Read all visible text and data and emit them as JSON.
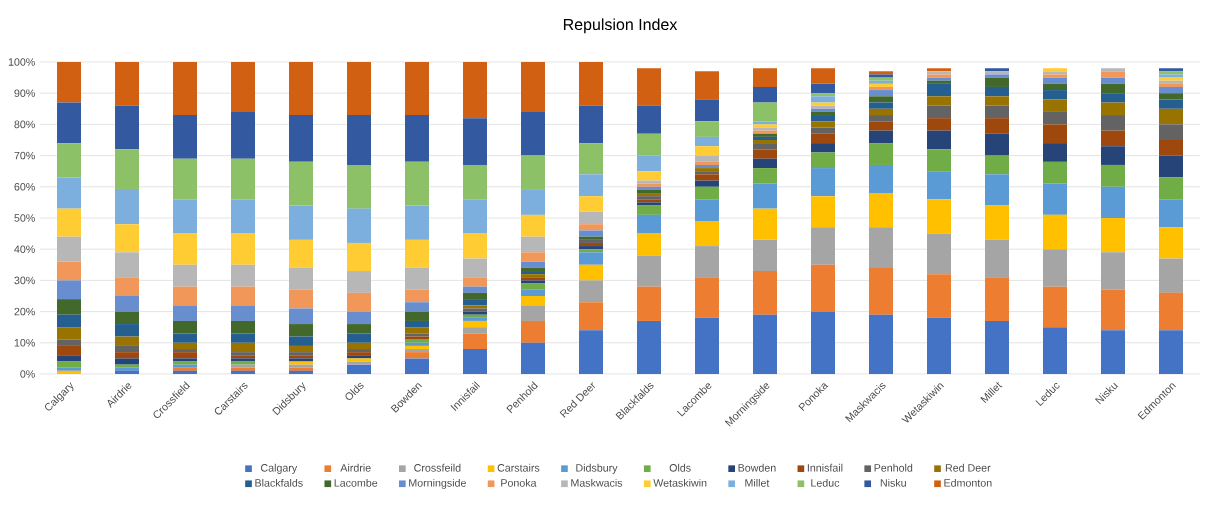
{
  "chart_data": {
    "type": "bar",
    "title": "Repulsion Index",
    "stacked": true,
    "grid": "y",
    "legend": "bottom",
    "categories": [
      "Calgary",
      "Airdrie",
      "Crossfield",
      "Carstairs",
      "Didsbury",
      "Olds",
      "Bowden",
      "Innisfail",
      "Penhold",
      "Red Deer",
      "Blackfalds",
      "Lacombe",
      "Morningside",
      "Ponoka",
      "Maskwacis",
      "Wetaskiwin",
      "Millet",
      "Leduc",
      "Nisku",
      "Edmonton"
    ],
    "ylim": [
      0,
      100
    ],
    "yticks": [
      {
        "value": 0,
        "label": "0%"
      },
      {
        "value": 10,
        "label": "10%"
      },
      {
        "value": 20,
        "label": "20%"
      },
      {
        "value": 30,
        "label": "30%"
      },
      {
        "value": 40,
        "label": "40%"
      },
      {
        "value": 50,
        "label": "50%"
      },
      {
        "value": 60,
        "label": "60%"
      },
      {
        "value": 70,
        "label": "70%"
      },
      {
        "value": 80,
        "label": "80%"
      },
      {
        "value": 90,
        "label": "90%"
      },
      {
        "value": 100,
        "label": "100%"
      }
    ],
    "series": [
      {
        "name": "Calgary",
        "color": "#4472c4",
        "values": [
          0,
          1,
          1,
          1,
          1,
          3,
          5,
          8,
          10,
          14,
          17,
          18,
          19,
          20,
          19,
          18,
          17,
          15,
          14,
          14
        ]
      },
      {
        "name": "Airdrie",
        "color": "#ed7d31",
        "values": [
          0,
          0,
          1,
          1,
          1,
          0,
          2,
          5,
          7,
          9,
          11,
          13,
          14,
          15,
          15,
          14,
          14,
          13,
          13,
          12
        ]
      },
      {
        "name": "Crossfeild",
        "color": "#a5a5a5",
        "values": [
          0,
          0,
          0,
          1,
          1,
          1,
          1,
          2,
          5,
          7,
          10,
          10,
          10,
          12,
          13,
          13,
          12,
          12,
          12,
          11
        ]
      },
      {
        "name": "Carstairs",
        "color": "#ffc000",
        "values": [
          1,
          0,
          0,
          0,
          1,
          1,
          1,
          2,
          3,
          5,
          7,
          8,
          10,
          10,
          11,
          11,
          11,
          11,
          11,
          10
        ]
      },
      {
        "name": "Didsbury",
        "color": "#5b9bd5",
        "values": [
          1,
          1,
          1,
          0,
          0,
          0,
          1,
          1,
          2,
          4,
          6,
          7,
          8,
          9,
          9,
          9,
          10,
          10,
          10,
          9
        ]
      },
      {
        "name": "Olds",
        "color": "#70ad47",
        "values": [
          2,
          1,
          1,
          1,
          0,
          0,
          1,
          1,
          2,
          1,
          3,
          4,
          5,
          5,
          7,
          7,
          6,
          7,
          7,
          7
        ]
      },
      {
        "name": "Bowden",
        "color": "#264478",
        "values": [
          2,
          2,
          1,
          1,
          1,
          1,
          0,
          1,
          1,
          1,
          1,
          2,
          3,
          3,
          4,
          6,
          7,
          6,
          6,
          7
        ]
      },
      {
        "name": "Innisfail",
        "color": "#9e480e",
        "values": [
          3,
          2,
          2,
          1,
          1,
          1,
          1,
          0,
          1,
          1,
          1,
          2,
          3,
          3,
          3,
          4,
          5,
          6,
          5,
          5
        ]
      },
      {
        "name": "Penhold",
        "color": "#636363",
        "values": [
          2,
          2,
          1,
          1,
          1,
          1,
          1,
          1,
          0,
          1,
          1,
          1,
          2,
          2,
          2,
          4,
          4,
          4,
          5,
          5
        ]
      },
      {
        "name": "Red Deer",
        "color": "#997300",
        "values": [
          4,
          3,
          2,
          3,
          2,
          2,
          2,
          1,
          1,
          0,
          1,
          1,
          1,
          2,
          2,
          3,
          3,
          4,
          4,
          5
        ]
      },
      {
        "name": "Blackfalds",
        "color": "#255e91",
        "values": [
          4,
          4,
          3,
          3,
          3,
          3,
          2,
          2,
          1,
          0,
          0,
          0,
          1,
          2,
          2,
          4,
          3,
          3,
          3,
          3
        ]
      },
      {
        "name": "Lacombe",
        "color": "#43682b",
        "values": [
          5,
          4,
          4,
          4,
          4,
          3,
          3,
          2,
          1,
          1,
          1,
          0,
          1,
          1,
          2,
          1,
          3,
          2,
          3,
          2
        ]
      },
      {
        "name": "Morningside",
        "color": "#698ed0",
        "values": [
          6,
          5,
          5,
          5,
          5,
          4,
          3,
          2,
          2,
          2,
          1,
          1,
          0,
          1,
          2,
          1,
          1,
          2,
          2,
          2
        ]
      },
      {
        "name": "Ponoka",
        "color": "#f1975a",
        "values": [
          6,
          6,
          6,
          6,
          6,
          6,
          4,
          3,
          3,
          2,
          1,
          1,
          1,
          0,
          1,
          1,
          0,
          1,
          2,
          1
        ]
      },
      {
        "name": "Maskwacis",
        "color": "#b7b7b7",
        "values": [
          8,
          8,
          7,
          7,
          7,
          7,
          7,
          6,
          5,
          4,
          1,
          2,
          1,
          1,
          0,
          1,
          1,
          1,
          1,
          1
        ]
      },
      {
        "name": "Wetaskiwin",
        "color": "#ffcd33",
        "values": [
          9,
          9,
          10,
          10,
          9,
          9,
          9,
          8,
          7,
          5,
          3,
          3,
          1,
          1,
          1,
          0,
          0,
          1,
          0,
          1
        ]
      },
      {
        "name": "Millet",
        "color": "#7cafdd",
        "values": [
          10,
          11,
          11,
          11,
          11,
          11,
          11,
          11,
          8,
          7,
          5,
          3,
          1,
          2,
          1,
          0,
          0,
          0,
          0,
          1
        ]
      },
      {
        "name": "Leduc",
        "color": "#8cc168",
        "values": [
          11,
          13,
          13,
          13,
          14,
          14,
          14,
          11,
          11,
          10,
          7,
          5,
          6,
          1,
          1,
          0,
          0,
          0,
          0,
          1
        ]
      },
      {
        "name": "Nisku",
        "color": "#335aa1",
        "values": [
          13,
          14,
          14,
          15,
          15,
          16,
          15,
          15,
          14,
          12,
          9,
          7,
          5,
          3,
          1,
          0,
          1,
          0,
          0,
          1
        ]
      },
      {
        "name": "Edmonton",
        "color": "#d26012",
        "values": [
          13,
          14,
          17,
          16,
          17,
          17,
          17,
          18,
          16,
          14,
          12,
          9,
          6,
          5,
          1,
          1,
          0,
          0,
          0,
          0
        ]
      }
    ]
  }
}
